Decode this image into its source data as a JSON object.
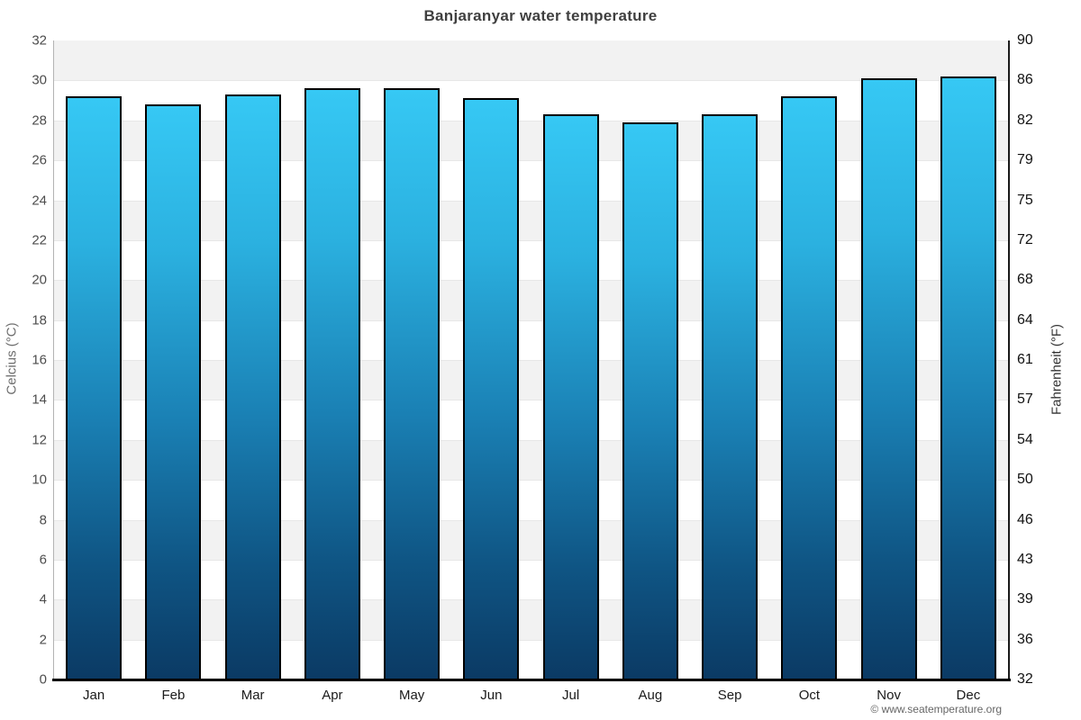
{
  "title": "Banjaranyar water temperature",
  "chart_data": {
    "type": "bar",
    "title": "Banjaranyar water temperature",
    "categories": [
      "Jan",
      "Feb",
      "Mar",
      "Apr",
      "May",
      "Jun",
      "Jul",
      "Aug",
      "Sep",
      "Oct",
      "Nov",
      "Dec"
    ],
    "values": [
      29.2,
      28.8,
      29.3,
      29.6,
      29.6,
      29.1,
      28.3,
      27.9,
      28.3,
      29.2,
      30.1,
      30.2
    ],
    "series_unit": "°C",
    "xlabel": "",
    "ylabel_left": "Celcius (°C)",
    "ylabel_right": "Fahrenheit (°F)",
    "ylim": [
      0,
      32
    ],
    "yticks_celsius": [
      0,
      2,
      4,
      6,
      8,
      10,
      12,
      14,
      16,
      18,
      20,
      22,
      24,
      26,
      28,
      30,
      32
    ],
    "yticks_fahrenheit": [
      "32",
      "36",
      "39",
      "43",
      "46",
      "50",
      "54",
      "57",
      "61",
      "64",
      "68",
      "72",
      "75",
      "79",
      "82",
      "86",
      "90"
    ],
    "grid": "striped-horizontal-bands",
    "legend": "none"
  },
  "colors": {
    "bar_gradient_top": "#36c8f4",
    "bar_gradient_mid": "#1a80b4",
    "bar_gradient_bottom": "#0b3a64",
    "bar_border": "#000000",
    "stripe_gray": "#f2f2f2",
    "stripe_white": "#ffffff",
    "title_text": "#3f3f3f"
  },
  "footer": {
    "copyright": "© www.seatemperature.org"
  }
}
